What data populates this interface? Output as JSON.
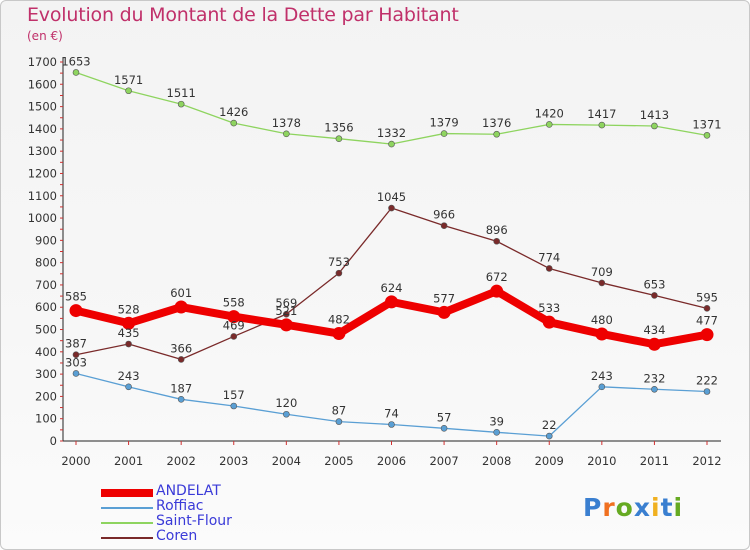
{
  "chart_data": {
    "type": "line",
    "title": "Evolution du Montant de la Dette par Habitant",
    "subtitle": "(en €)",
    "x": [
      "2000",
      "2001",
      "2002",
      "2003",
      "2004",
      "2005",
      "2006",
      "2007",
      "2008",
      "2009",
      "2010",
      "2011",
      "2012"
    ],
    "ylim": [
      0,
      1700
    ],
    "yticks": [
      0,
      100,
      200,
      300,
      400,
      500,
      600,
      700,
      800,
      900,
      1000,
      1100,
      1200,
      1300,
      1400,
      1500,
      1600,
      1700
    ],
    "grid": false,
    "legend_position": "bottom-left",
    "series": [
      {
        "name": "ANDELAT",
        "color": "#ee0000",
        "values": [
          585,
          528,
          601,
          558,
          521,
          482,
          624,
          577,
          672,
          533,
          480,
          434,
          477
        ]
      },
      {
        "name": "Roffiac",
        "color": "#5a9fd4",
        "values": [
          303,
          243,
          187,
          157,
          120,
          87,
          74,
          57,
          39,
          22,
          243,
          232,
          222
        ]
      },
      {
        "name": "Saint-Flour",
        "color": "#8ed45f",
        "values": [
          1653,
          1571,
          1511,
          1426,
          1378,
          1356,
          1332,
          1379,
          1376,
          1420,
          1417,
          1413,
          1371
        ]
      },
      {
        "name": "Coren",
        "color": "#7a2a2a",
        "values": [
          387,
          435,
          366,
          469,
          569,
          753,
          1045,
          966,
          896,
          774,
          709,
          653,
          595
        ]
      }
    ]
  },
  "logo": {
    "letters": [
      "P",
      "r",
      "o",
      "x",
      "i",
      "t",
      "i"
    ],
    "colors": [
      "#3a7fd0",
      "#f07020",
      "#66aa22",
      "#3a7fd0",
      "#f0b020",
      "#3a7fd0",
      "#66aa22"
    ]
  }
}
